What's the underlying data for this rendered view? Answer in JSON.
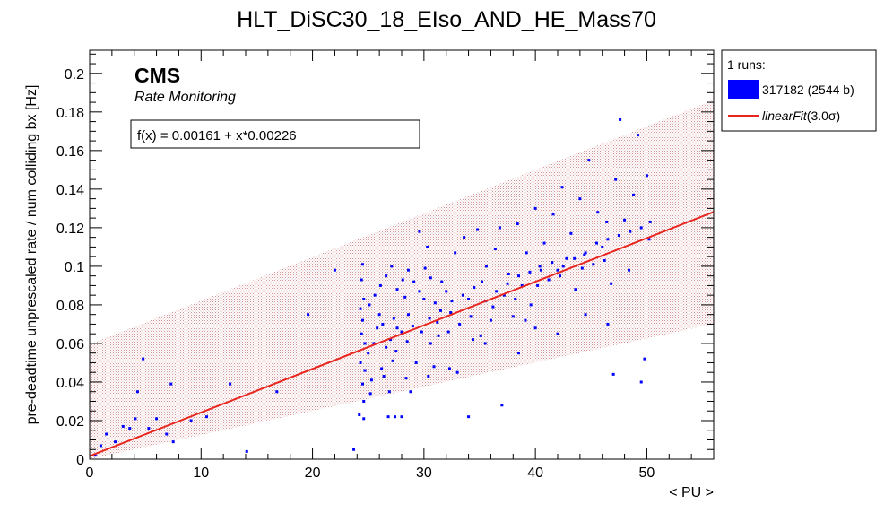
{
  "chart_data": {
    "type": "scatter",
    "title": "HLT_DiSC30_18_EIso_AND_HE_Mass70",
    "xlabel": "< PU >",
    "ylabel": "pre-deadtime unprescaled rate / num colliding bx [Hz]",
    "xlim": [
      0,
      56
    ],
    "ylim": [
      0,
      0.212
    ],
    "x_ticks": [
      "0",
      "10",
      "20",
      "30",
      "40",
      "50"
    ],
    "y_ticks": [
      "0",
      "0.02",
      "0.04",
      "0.06",
      "0.08",
      "0.1",
      "0.12",
      "0.14",
      "0.16",
      "0.18",
      "0.2"
    ],
    "grid": false,
    "legend_position": "top-right, outside plot",
    "cms_label": "CMS",
    "cms_sublabel": "Rate Monitoring",
    "fit_label": "f(x) = 0.00161 + x*0.00226",
    "fit": {
      "intercept": 0.00161,
      "slope": 0.00226,
      "band_sigma": 3.0,
      "band_halfwidth": 0.058
    },
    "colors": {
      "points": "#0000ff",
      "fit": "#e8261f",
      "band": "#b03a3a"
    },
    "legend": {
      "header": "1 runs:",
      "run_label": "317182 (2544 b)",
      "fit_label_prefix": "linearFit",
      "fit_label_suffix": "(3.0σ)"
    },
    "series": [
      {
        "name": "317182 (2544 b)",
        "points": [
          [
            0.5,
            0.002
          ],
          [
            1.0,
            0.007
          ],
          [
            1.5,
            0.013
          ],
          [
            2.3,
            0.009
          ],
          [
            3.0,
            0.017
          ],
          [
            3.6,
            0.016
          ],
          [
            4.1,
            0.021
          ],
          [
            4.3,
            0.035
          ],
          [
            4.8,
            0.052
          ],
          [
            5.3,
            0.016
          ],
          [
            6.0,
            0.021
          ],
          [
            6.9,
            0.013
          ],
          [
            7.3,
            0.039
          ],
          [
            7.5,
            0.009
          ],
          [
            9.1,
            0.02
          ],
          [
            10.5,
            0.022
          ],
          [
            12.6,
            0.039
          ],
          [
            14.1,
            0.004
          ],
          [
            16.8,
            0.035
          ],
          [
            19.6,
            0.075
          ],
          [
            22.0,
            0.098
          ],
          [
            23.7,
            0.005
          ],
          [
            24.2,
            0.023
          ],
          [
            24.6,
            0.021
          ],
          [
            24.3,
            0.05
          ],
          [
            24.7,
            0.06
          ],
          [
            24.4,
            0.065
          ],
          [
            24.5,
            0.072
          ],
          [
            24.3,
            0.078
          ],
          [
            24.6,
            0.083
          ],
          [
            24.4,
            0.093
          ],
          [
            24.5,
            0.101
          ],
          [
            24.7,
            0.046
          ],
          [
            24.5,
            0.039
          ],
          [
            24.6,
            0.03
          ],
          [
            25.0,
            0.055
          ],
          [
            25.5,
            0.06
          ],
          [
            25.8,
            0.068
          ],
          [
            26.0,
            0.075
          ],
          [
            26.3,
            0.07
          ],
          [
            26.6,
            0.058
          ],
          [
            27.0,
            0.062
          ],
          [
            27.3,
            0.073
          ],
          [
            27.6,
            0.068
          ],
          [
            28.0,
            0.066
          ],
          [
            28.3,
            0.084
          ],
          [
            28.6,
            0.075
          ],
          [
            26.8,
            0.022
          ],
          [
            27.4,
            0.022
          ],
          [
            28.0,
            0.022
          ],
          [
            28.8,
            0.035
          ],
          [
            29.3,
            0.05
          ],
          [
            29.6,
            0.118
          ],
          [
            30.0,
            0.083
          ],
          [
            30.3,
            0.11
          ],
          [
            30.6,
            0.06
          ],
          [
            31.0,
            0.081
          ],
          [
            31.3,
            0.064
          ],
          [
            31.6,
            0.092
          ],
          [
            25.1,
            0.08
          ],
          [
            25.6,
            0.085
          ],
          [
            26.1,
            0.09
          ],
          [
            26.6,
            0.095
          ],
          [
            27.1,
            0.1
          ],
          [
            27.6,
            0.088
          ],
          [
            28.1,
            0.093
          ],
          [
            28.6,
            0.098
          ],
          [
            29.1,
            0.092
          ],
          [
            29.6,
            0.087
          ],
          [
            30.1,
            0.099
          ],
          [
            30.6,
            0.094
          ],
          [
            32.0,
            0.087
          ],
          [
            32.4,
            0.076
          ],
          [
            32.8,
            0.107
          ],
          [
            33.2,
            0.07
          ],
          [
            33.6,
            0.115
          ],
          [
            34.0,
            0.083
          ],
          [
            34.4,
            0.062
          ],
          [
            34.8,
            0.119
          ],
          [
            35.2,
            0.092
          ],
          [
            35.6,
            0.1
          ],
          [
            36.0,
            0.072
          ],
          [
            36.4,
            0.109
          ],
          [
            36.8,
            0.12
          ],
          [
            37.2,
            0.085
          ],
          [
            37.6,
            0.096
          ],
          [
            38.0,
            0.074
          ],
          [
            38.4,
            0.122
          ],
          [
            38.8,
            0.09
          ],
          [
            39.2,
            0.107
          ],
          [
            39.6,
            0.08
          ],
          [
            40.0,
            0.13
          ],
          [
            40.4,
            0.1
          ],
          [
            40.8,
            0.112
          ],
          [
            41.2,
            0.093
          ],
          [
            41.6,
            0.127
          ],
          [
            42.0,
            0.098
          ],
          [
            42.4,
            0.141
          ],
          [
            42.8,
            0.104
          ],
          [
            43.2,
            0.117
          ],
          [
            43.6,
            0.088
          ],
          [
            44.0,
            0.135
          ],
          [
            44.4,
            0.106
          ],
          [
            44.8,
            0.155
          ],
          [
            45.2,
            0.101
          ],
          [
            45.6,
            0.128
          ],
          [
            46.0,
            0.11
          ],
          [
            46.4,
            0.123
          ],
          [
            46.8,
            0.091
          ],
          [
            47.2,
            0.145
          ],
          [
            47.6,
            0.176
          ],
          [
            48.0,
            0.124
          ],
          [
            48.4,
            0.098
          ],
          [
            48.8,
            0.137
          ],
          [
            49.2,
            0.168
          ],
          [
            49.5,
            0.04
          ],
          [
            49.8,
            0.052
          ],
          [
            50.0,
            0.147
          ],
          [
            50.3,
            0.123
          ],
          [
            34.0,
            0.022
          ],
          [
            37.0,
            0.028
          ],
          [
            40.0,
            0.068
          ],
          [
            42.0,
            0.065
          ],
          [
            47.0,
            0.044
          ],
          [
            33.0,
            0.045
          ],
          [
            35.5,
            0.06
          ],
          [
            38.5,
            0.055
          ],
          [
            44.5,
            0.075
          ],
          [
            46.5,
            0.07
          ],
          [
            29.0,
            0.069
          ],
          [
            30.5,
            0.073
          ],
          [
            31.5,
            0.077
          ],
          [
            32.5,
            0.082
          ],
          [
            33.5,
            0.085
          ],
          [
            34.5,
            0.089
          ],
          [
            35.5,
            0.082
          ],
          [
            36.5,
            0.087
          ],
          [
            37.5,
            0.091
          ],
          [
            38.5,
            0.095
          ],
          [
            39.5,
            0.097
          ],
          [
            40.5,
            0.098
          ],
          [
            41.5,
            0.102
          ],
          [
            42.5,
            0.1
          ],
          [
            43.5,
            0.104
          ],
          [
            44.5,
            0.107
          ],
          [
            45.5,
            0.112
          ],
          [
            46.5,
            0.114
          ],
          [
            47.5,
            0.116
          ],
          [
            48.5,
            0.118
          ],
          [
            49.5,
            0.12
          ],
          [
            50.2,
            0.114
          ],
          [
            27.5,
            0.056
          ],
          [
            28.5,
            0.061
          ],
          [
            26.2,
            0.047
          ],
          [
            27.2,
            0.051
          ],
          [
            29.8,
            0.066
          ],
          [
            31.2,
            0.071
          ],
          [
            32.2,
            0.066
          ],
          [
            34.2,
            0.074
          ],
          [
            36.2,
            0.079
          ],
          [
            38.2,
            0.083
          ],
          [
            40.2,
            0.09
          ],
          [
            42.2,
            0.095
          ],
          [
            44.2,
            0.099
          ],
          [
            46.2,
            0.103
          ],
          [
            25.3,
            0.041
          ],
          [
            26.4,
            0.043
          ],
          [
            28.4,
            0.042
          ],
          [
            30.4,
            0.043
          ],
          [
            32.3,
            0.047
          ],
          [
            25.2,
            0.034
          ],
          [
            26.9,
            0.035
          ],
          [
            30.9,
            0.048
          ],
          [
            35.1,
            0.064
          ],
          [
            39.1,
            0.072
          ]
        ]
      }
    ]
  }
}
